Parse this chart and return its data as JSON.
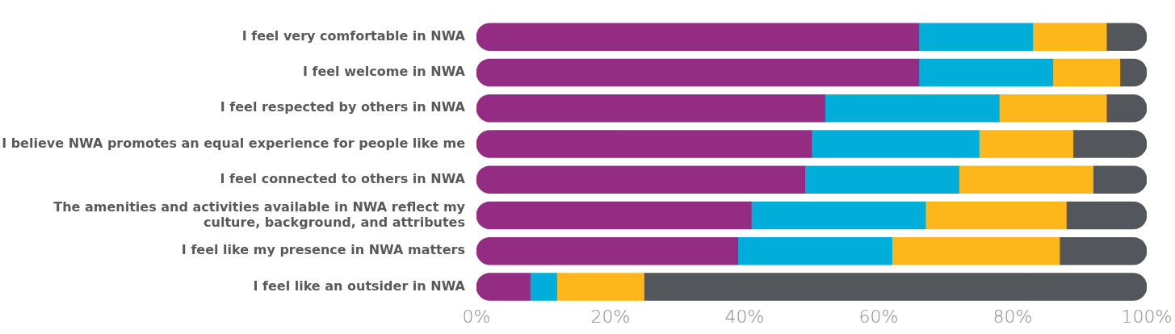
{
  "chart_data": {
    "type": "bar",
    "orientation": "horizontal",
    "stacked": true,
    "categories": [
      "I feel very comfortable in NWA",
      "I feel welcome in NWA",
      "I feel respected by others in NWA",
      "I believe NWA promotes an equal experience for people like me",
      "I feel connected to others in NWA",
      "The amenities and activities available in NWA reflect my culture, background, and attributes",
      "I feel like my presence in NWA matters",
      "I feel like an outsider in NWA"
    ],
    "series": [
      {
        "color": "#952c83",
        "values": [
          66,
          66,
          52,
          50,
          49,
          41,
          39,
          8
        ]
      },
      {
        "color": "#00aed9",
        "values": [
          17,
          20,
          26,
          25,
          23,
          26,
          23,
          4
        ]
      },
      {
        "color": "#fdb71a",
        "values": [
          11,
          10,
          16,
          14,
          20,
          21,
          25,
          13
        ]
      },
      {
        "color": "#53565a",
        "values": [
          6,
          4,
          6,
          11,
          8,
          12,
          13,
          75
        ]
      }
    ],
    "xlim": [
      0,
      100
    ],
    "xticks": [
      {
        "value": 0,
        "label": "0%"
      },
      {
        "value": 20,
        "label": "20%"
      },
      {
        "value": 40,
        "label": "40%"
      },
      {
        "value": 60,
        "label": "60%"
      },
      {
        "value": 80,
        "label": "80%"
      },
      {
        "value": 100,
        "label": "100%"
      }
    ],
    "grid": false,
    "legend": false
  }
}
